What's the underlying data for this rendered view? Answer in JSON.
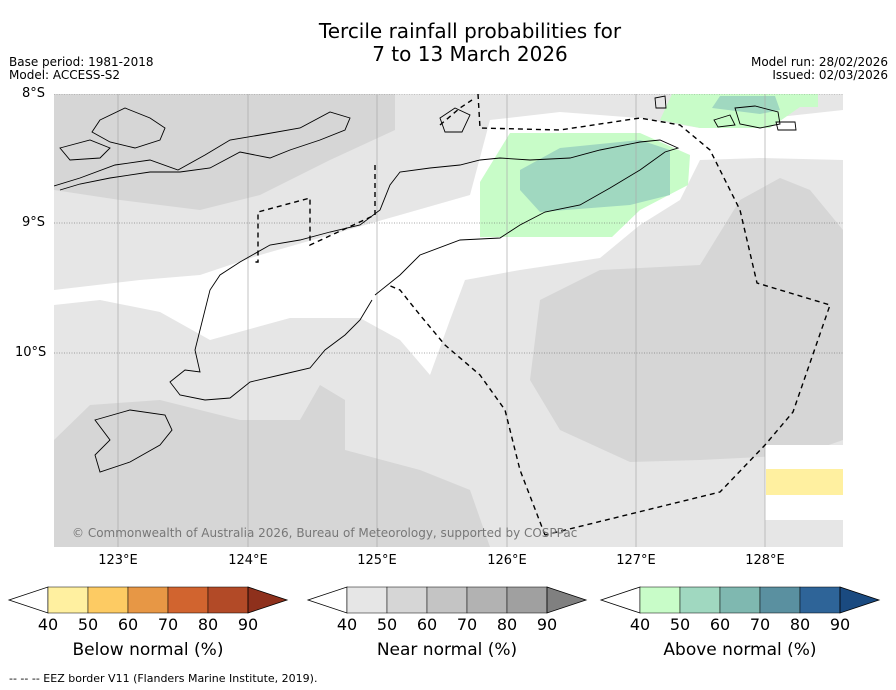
{
  "title": {
    "line1": "Tercile rainfall probabilities for",
    "line2": "7 to 13 March 2026"
  },
  "meta": {
    "base_period": "Base period: 1981-2018",
    "model": "Model: ACCESS-S2",
    "model_run": "Model run: 28/02/2026",
    "issued": "Issued: 02/03/2026"
  },
  "map": {
    "lat_labels": [
      "8°S",
      "9°S",
      "10°S"
    ],
    "lon_labels": [
      "123°E",
      "124°E",
      "125°E",
      "126°E",
      "127°E",
      "128°E"
    ],
    "copyright": "© Commonwealth of Australia 2026, Bureau of Meteorology, supported by COSPPac"
  },
  "colorbars": [
    {
      "label": "Below normal (%)",
      "ticks": [
        "40",
        "50",
        "60",
        "70",
        "80",
        "90"
      ],
      "colors": [
        "#fff0a0",
        "#fdcb63",
        "#e79745",
        "#d1642f",
        "#b24a27",
        "#8e301c"
      ]
    },
    {
      "label": "Near normal (%)",
      "ticks": [
        "40",
        "50",
        "60",
        "70",
        "80",
        "90"
      ],
      "colors": [
        "#e6e6e6",
        "#d6d6d6",
        "#c4c4c4",
        "#b2b2b2",
        "#a0a0a0",
        "#808080"
      ]
    },
    {
      "label": "Above normal (%)",
      "ticks": [
        "40",
        "50",
        "60",
        "70",
        "80",
        "90"
      ],
      "colors": [
        "#c8fcc8",
        "#a0d8c0",
        "#7fb8b0",
        "#5a90a0",
        "#2e6498",
        "#1a4a80"
      ]
    }
  ],
  "footnote": "--  --  -- EEZ border V11 (Flanders Marine Institute, 2019)."
}
